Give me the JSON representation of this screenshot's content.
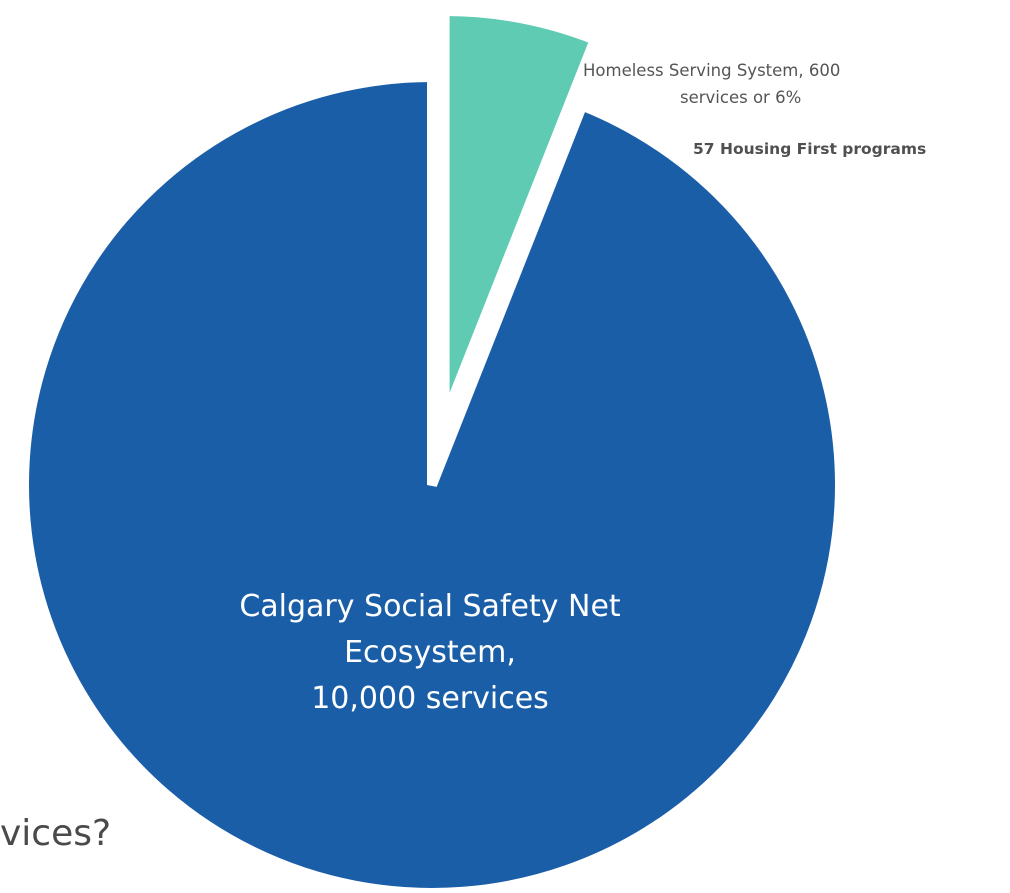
{
  "chart_data": {
    "type": "pie",
    "title": "",
    "slices": [
      {
        "name": "Calgary Social Safety Net Ecosystem",
        "label_lines": [
          "Calgary Social Safety Net",
          "Ecosystem,",
          "10,000 services"
        ],
        "value": 94,
        "color": "#1b5ea8"
      },
      {
        "name": "Homeless Serving System",
        "label_lines": [
          "Homeless Serving System, 600",
          "services or 6%"
        ],
        "sub_label": "57 Housing First programs",
        "value": 6,
        "color": "#5ecbb2",
        "exploded": true
      }
    ]
  },
  "page": {
    "partial_text": "vices?"
  }
}
